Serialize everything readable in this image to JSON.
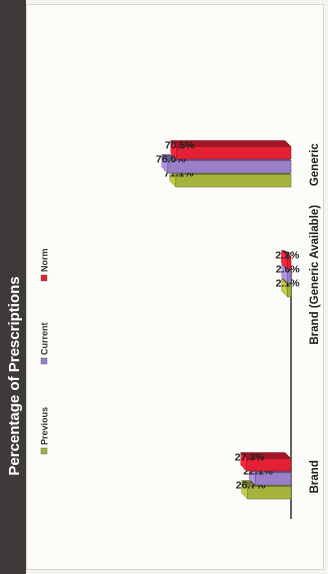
{
  "chart_data": {
    "type": "bar",
    "title": "Percentage of Prescriptions",
    "categories": [
      "Brand",
      "Brand (Generic Available)",
      "Generic"
    ],
    "series": [
      {
        "name": "Previous",
        "values": [
          26.7,
          2.1,
          71.1
        ],
        "labels": [
          "26.7%",
          "2.1%",
          "71.1%"
        ]
      },
      {
        "name": "Current",
        "values": [
          22.1,
          2.0,
          76.0
        ],
        "labels": [
          "22.1%",
          "2.0%",
          "76.0%"
        ]
      },
      {
        "name": "Norm",
        "values": [
          27.3,
          2.2,
          70.5
        ],
        "labels": [
          "27.3%",
          "2.2%",
          "70.5%"
        ]
      }
    ],
    "ylim": [
      0,
      100
    ],
    "legend_position": "top",
    "grid": false,
    "colors": {
      "Previous": "#a7b43c",
      "Current": "#9a7fc8",
      "Norm": "#e42035",
      "title_band": "#3e3a3a"
    }
  }
}
